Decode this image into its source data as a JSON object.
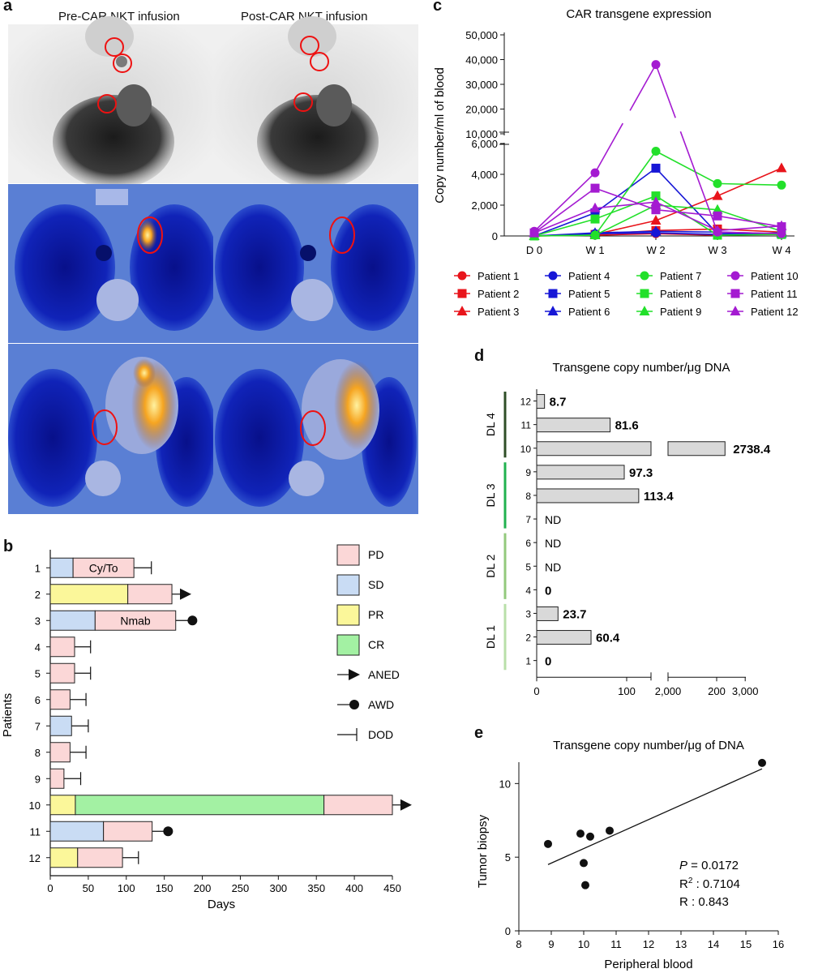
{
  "colors": {
    "red": "#e8141b",
    "blue": "#1717d6",
    "green": "#22e02a",
    "purple": "#a41bd1",
    "pd": "#fbd7d7",
    "sd": "#c9dcf4",
    "pr": "#fbf79a",
    "cr": "#a3f1a3",
    "bar_gray": "#d9d9d9",
    "dl4": "#2f4e27",
    "dl3": "#21b24f",
    "dl2": "#93c97c",
    "dl1": "#b9dfa9"
  },
  "panel_a": {
    "label": "a",
    "pre_title": "Pre-CAR NKT infusion",
    "post_title": "Post-CAR NKT infusion"
  },
  "panel_b": {
    "label": "b",
    "ylabel": "Patients",
    "xlabel": "Days",
    "xticks": [
      "0",
      "50",
      "100",
      "150",
      "200",
      "250",
      "300",
      "350",
      "400",
      "450"
    ],
    "xmax": 450,
    "patients": [
      {
        "id": "1",
        "segments": [
          {
            "s": "SD",
            "from": 0,
            "to": 30
          },
          {
            "s": "PD",
            "from": 30,
            "to": 110
          }
        ],
        "end": {
          "type": "DOD",
          "at": 133
        },
        "note": "Cy/To"
      },
      {
        "id": "2",
        "segments": [
          {
            "s": "PR",
            "from": 0,
            "to": 102
          },
          {
            "s": "PD",
            "from": 102,
            "to": 160
          }
        ],
        "end": {
          "type": "ANED",
          "at": 177
        },
        "note": ""
      },
      {
        "id": "3",
        "segments": [
          {
            "s": "SD",
            "from": 0,
            "to": 59
          },
          {
            "s": "PD",
            "from": 59,
            "to": 165
          }
        ],
        "end": {
          "type": "AWD",
          "at": 187
        },
        "note": "Nmab"
      },
      {
        "id": "4",
        "segments": [
          {
            "s": "PD",
            "from": 0,
            "to": 32
          }
        ],
        "end": {
          "type": "DOD",
          "at": 53
        },
        "note": ""
      },
      {
        "id": "5",
        "segments": [
          {
            "s": "PD",
            "from": 0,
            "to": 32
          }
        ],
        "end": {
          "type": "DOD",
          "at": 53
        },
        "note": ""
      },
      {
        "id": "6",
        "segments": [
          {
            "s": "PD",
            "from": 0,
            "to": 26
          }
        ],
        "end": {
          "type": "DOD",
          "at": 47
        },
        "note": ""
      },
      {
        "id": "7",
        "segments": [
          {
            "s": "SD",
            "from": 0,
            "to": 28
          }
        ],
        "end": {
          "type": "DOD",
          "at": 50
        },
        "note": ""
      },
      {
        "id": "8",
        "segments": [
          {
            "s": "PD",
            "from": 0,
            "to": 26
          }
        ],
        "end": {
          "type": "DOD",
          "at": 47
        },
        "note": ""
      },
      {
        "id": "9",
        "segments": [
          {
            "s": "PD",
            "from": 0,
            "to": 18
          }
        ],
        "end": {
          "type": "DOD",
          "at": 40
        },
        "note": ""
      },
      {
        "id": "10",
        "segments": [
          {
            "s": "PR",
            "from": 0,
            "to": 33
          },
          {
            "s": "CR",
            "from": 33,
            "to": 360
          },
          {
            "s": "PD",
            "from": 360,
            "to": 450
          }
        ],
        "end": {
          "type": "ANED",
          "at": 467
        },
        "note": ""
      },
      {
        "id": "11",
        "segments": [
          {
            "s": "SD",
            "from": 0,
            "to": 70
          },
          {
            "s": "PD",
            "from": 70,
            "to": 134
          }
        ],
        "end": {
          "type": "AWD",
          "at": 155
        },
        "note": ""
      },
      {
        "id": "12",
        "segments": [
          {
            "s": "PR",
            "from": 0,
            "to": 36
          },
          {
            "s": "PD",
            "from": 36,
            "to": 95
          }
        ],
        "end": {
          "type": "DOD",
          "at": 116
        },
        "note": ""
      }
    ],
    "legend": [
      {
        "key": "PD",
        "label": "PD"
      },
      {
        "key": "SD",
        "label": "SD"
      },
      {
        "key": "PR",
        "label": "PR"
      },
      {
        "key": "CR",
        "label": "CR"
      },
      {
        "key": "ANED",
        "label": "ANED"
      },
      {
        "key": "AWD",
        "label": "AWD"
      },
      {
        "key": "DOD",
        "label": "DOD"
      }
    ]
  },
  "panel_c": {
    "label": "c",
    "title": "CAR transgene expression",
    "ylabel": "Copy number/ml of blood",
    "upper_ticks": [
      "50,000",
      "40,000",
      "30,000",
      "20,000",
      "10,000"
    ],
    "lower_ticks": [
      "6,000",
      "4,000",
      "2,000",
      "0"
    ],
    "xticks": [
      "D 0",
      "W 1",
      "W 2",
      "W 3",
      "W 4"
    ]
  },
  "chart_data": [
    {
      "type": "line",
      "title": "CAR transgene expression",
      "ylabel": "Copy number/ml of blood",
      "x": [
        "D 0",
        "W 1",
        "W 2",
        "W 3",
        "W 4"
      ],
      "series": [
        {
          "name": "Patient 1",
          "color": "red",
          "marker": "circle",
          "values": [
            0,
            50,
            150,
            50,
            150
          ]
        },
        {
          "name": "Patient 2",
          "color": "red",
          "marker": "square",
          "values": [
            0,
            100,
            350,
            450,
            250
          ]
        },
        {
          "name": "Patient 3",
          "color": "red",
          "marker": "triangle",
          "values": [
            0,
            100,
            1000,
            2600,
            4400
          ]
        },
        {
          "name": "Patient 4",
          "color": "blue",
          "marker": "circle",
          "values": [
            0,
            150,
            200,
            100,
            200
          ]
        },
        {
          "name": "Patient 5",
          "color": "blue",
          "marker": "square",
          "values": [
            0,
            1500,
            4400,
            150,
            100
          ]
        },
        {
          "name": "Patient 6",
          "color": "blue",
          "marker": "triangle",
          "values": [
            0,
            200,
            300,
            250,
            150
          ]
        },
        {
          "name": "Patient 7",
          "color": "green",
          "marker": "circle",
          "values": [
            0,
            50,
            5500,
            3400,
            3300
          ]
        },
        {
          "name": "Patient 8",
          "color": "green",
          "marker": "square",
          "values": [
            0,
            1100,
            2600,
            50,
            100
          ]
        },
        {
          "name": "Patient 9",
          "color": "green",
          "marker": "triangle",
          "values": [
            0,
            50,
            2000,
            1700,
            300
          ]
        },
        {
          "name": "Patient 10",
          "color": "purple",
          "marker": "circle",
          "values": [
            300,
            4100,
            38000,
            250,
            150
          ]
        },
        {
          "name": "Patient 11",
          "color": "purple",
          "marker": "square",
          "values": [
            200,
            3100,
            1700,
            1300,
            600
          ]
        },
        {
          "name": "Patient 12",
          "color": "purple",
          "marker": "triangle",
          "values": [
            200,
            1800,
            2200,
            350,
            650
          ]
        }
      ]
    },
    {
      "type": "bar",
      "title": "Transgene copy number/μg DNA",
      "orientation": "horizontal",
      "categories": [
        "12",
        "11",
        "10",
        "9",
        "8",
        "7",
        "6",
        "5",
        "4",
        "3",
        "2",
        "1"
      ],
      "values": [
        8.7,
        81.6,
        2738.4,
        97.3,
        113.4,
        null,
        null,
        null,
        0,
        23.7,
        60.4,
        0
      ],
      "labels": [
        "8.7",
        "81.6",
        "2738.4",
        "97.3",
        "113.4",
        "ND",
        "ND",
        "ND",
        "0",
        "23.7",
        "60.4",
        "0"
      ],
      "groups": [
        {
          "name": "DL 4",
          "members": [
            "12",
            "11",
            "10"
          ],
          "color": "dl4"
        },
        {
          "name": "DL 3",
          "members": [
            "9",
            "8",
            "7"
          ],
          "color": "dl3"
        },
        {
          "name": "DL 2",
          "members": [
            "6",
            "5",
            "4"
          ],
          "color": "dl2"
        },
        {
          "name": "DL 1",
          "members": [
            "3",
            "2",
            "1"
          ],
          "color": "dl1"
        }
      ],
      "xticks": [
        "0",
        "100",
        "200",
        "2,000",
        "3,000"
      ]
    },
    {
      "type": "scatter",
      "title": "Transgene copy number/μg of DNA",
      "xlabel": "Peripheral blood",
      "ylabel": "Tumor biopsy",
      "xlim": [
        8,
        16
      ],
      "ylim": [
        0,
        12
      ],
      "xticks": [
        "8",
        "9",
        "10",
        "11",
        "12",
        "13",
        "14",
        "15",
        "16"
      ],
      "yticks": [
        "0",
        "5",
        "10"
      ],
      "points": [
        [
          8.9,
          5.9
        ],
        [
          9.9,
          6.6
        ],
        [
          10.2,
          6.4
        ],
        [
          10.8,
          6.8
        ],
        [
          10.0,
          4.6
        ],
        [
          10.05,
          3.1
        ],
        [
          15.5,
          11.4
        ]
      ],
      "fit": [
        [
          8.9,
          4.5
        ],
        [
          15.5,
          11.0
        ]
      ],
      "stats": {
        "p": "0.0172",
        "r2": "0.7104",
        "r": "0.843"
      }
    }
  ],
  "panel_d": {
    "label": "d",
    "title": "Transgene copy number/μg DNA"
  },
  "panel_e": {
    "label": "e",
    "title": "Transgene copy number/μg of DNA",
    "xlabel": "Peripheral blood",
    "ylabel": "Tumor biopsy",
    "p_label": "P",
    "p_value": " = 0.0172",
    "r2_label": "R",
    "r2_sup": "2",
    "r2_value": " : 0.7104",
    "r_text": "R : 0.843"
  }
}
